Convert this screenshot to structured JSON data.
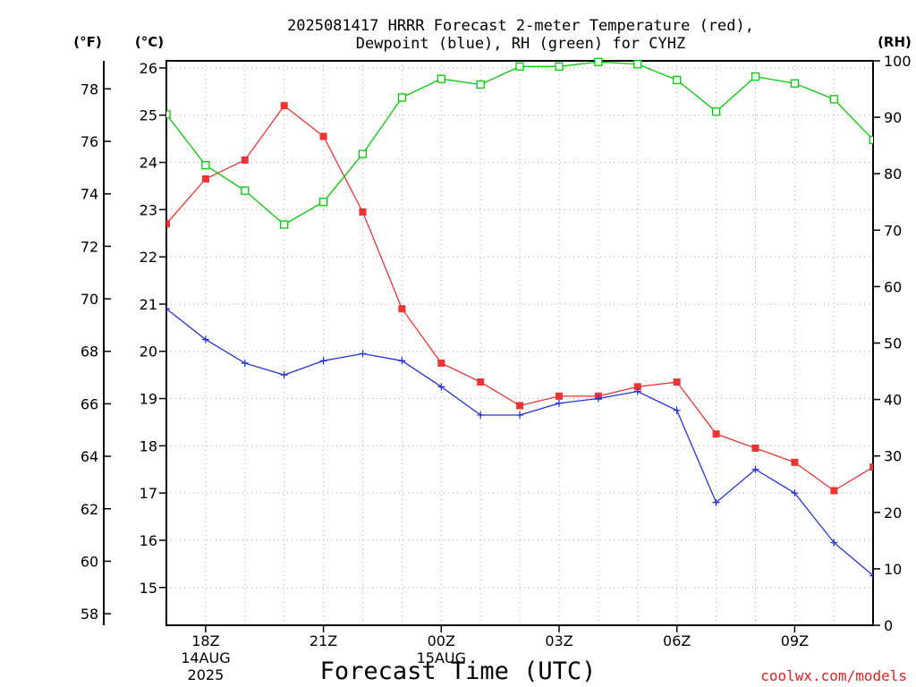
{
  "title_line1": "2025081417 HRRR Forecast 2-meter Temperature (red),",
  "title_line2": "Dewpoint (blue), RH (green) for CYHZ",
  "unit_f": "(°F)",
  "unit_c": "(°C)",
  "unit_rh": "(RH)",
  "xlabel": "Forecast Time (UTC)",
  "credit": "coolwx.com/models",
  "colors": {
    "temperature": "#ee3333",
    "dewpoint": "#2233dd",
    "rh": "#00cc00",
    "grid": "#aaaaaa"
  },
  "chart_data": {
    "type": "line",
    "grid": true,
    "x_hours_utc": [
      "17Z",
      "18Z",
      "19Z",
      "20Z",
      "21Z",
      "22Z",
      "23Z",
      "00Z",
      "01Z",
      "02Z",
      "03Z",
      "04Z",
      "05Z",
      "06Z",
      "07Z",
      "08Z",
      "09Z",
      "10Z",
      "11Z"
    ],
    "x_tick_labels": [
      {
        "label": "18Z",
        "hour_index": 1,
        "sub1": "14AUG",
        "sub2": "2025"
      },
      {
        "label": "21Z",
        "hour_index": 4
      },
      {
        "label": "00Z",
        "hour_index": 7,
        "sub1": "15AUG"
      },
      {
        "label": "03Z",
        "hour_index": 10
      },
      {
        "label": "06Z",
        "hour_index": 13
      },
      {
        "label": "09Z",
        "hour_index": 16
      }
    ],
    "y_celsius": {
      "range": [
        14.2,
        26.15
      ],
      "ticks": [
        15,
        16,
        17,
        18,
        19,
        20,
        21,
        22,
        23,
        24,
        25,
        26
      ]
    },
    "y_fahrenheit": {
      "ticks": [
        58,
        60,
        62,
        64,
        66,
        68,
        70,
        72,
        74,
        76,
        78
      ]
    },
    "y_rh": {
      "range": [
        0,
        100
      ],
      "ticks": [
        0,
        10,
        20,
        30,
        40,
        50,
        60,
        70,
        80,
        90,
        100
      ]
    },
    "series": [
      {
        "axis": "celsius",
        "marker": "filled-square",
        "color": "#ee3333",
        "values": [
          22.7,
          23.65,
          24.05,
          25.2,
          24.55,
          22.95,
          20.9,
          19.75,
          19.35,
          18.85,
          19.05,
          19.05,
          19.25,
          19.35,
          18.25,
          17.95,
          17.65,
          17.05,
          17.55
        ]
      },
      {
        "axis": "celsius",
        "marker": "plus",
        "color": "#2233dd",
        "values": [
          20.9,
          20.25,
          19.75,
          19.5,
          19.8,
          19.95,
          19.8,
          19.25,
          18.65,
          18.65,
          18.9,
          19.0,
          19.15,
          18.75,
          16.8,
          17.5,
          17.0,
          15.95,
          15.25
        ]
      },
      {
        "axis": "rh",
        "marker": "open-square",
        "color": "#00cc00",
        "values": [
          90.5,
          81.5,
          77.0,
          71.0,
          75.0,
          83.5,
          93.5,
          96.8,
          95.8,
          99.0,
          99.0,
          99.8,
          99.4,
          96.6,
          91.0,
          97.2,
          96.0,
          93.2,
          86.0
        ]
      }
    ]
  }
}
